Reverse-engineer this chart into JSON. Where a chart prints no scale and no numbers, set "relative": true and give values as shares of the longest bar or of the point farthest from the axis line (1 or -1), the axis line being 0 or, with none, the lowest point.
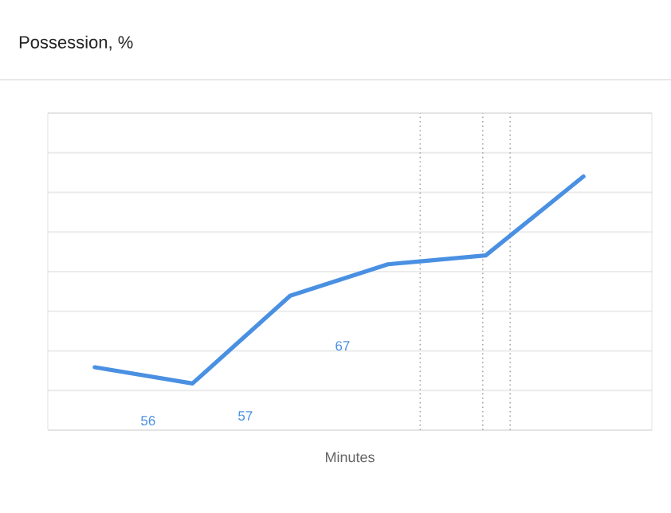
{
  "chart_data": {
    "type": "line",
    "title": "Possession, %",
    "xlabel": "Minutes",
    "relative": true,
    "categories": [
      null,
      null,
      null,
      null,
      null,
      null
    ],
    "series": [
      {
        "color": "#4a90e2",
        "values": [
          0.248,
          0.184,
          0.53,
          0.654,
          0.689,
          1
        ]
      }
    ],
    "annotations": [
      "56",
      "57",
      "67"
    ],
    "grid": "y",
    "marker": "none",
    "line_style": "solid"
  }
}
